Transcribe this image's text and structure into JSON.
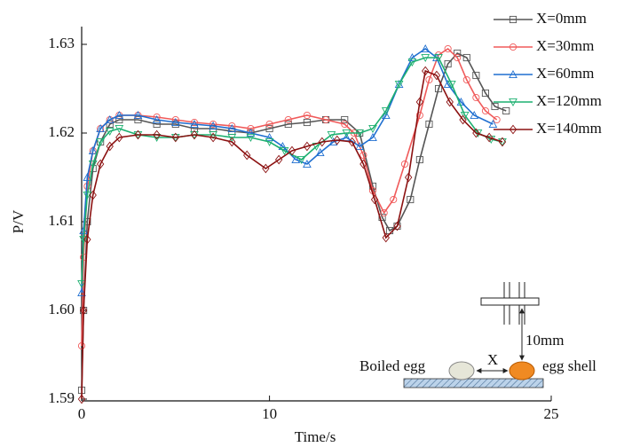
{
  "chart_data": {
    "type": "line",
    "x_label": "Time/s",
    "y_label": "P/V",
    "xlim": [
      0,
      25
    ],
    "xticks": [
      0,
      10,
      25
    ],
    "ylim": [
      1.59,
      1.632
    ],
    "yticks": [
      1.59,
      {
        "value": 1.6,
        "label": "1.60"
      },
      1.61,
      1.62,
      1.63
    ],
    "legend": "top-right",
    "series": [
      {
        "name": "X=0mm",
        "color": "#555555",
        "marker": "square",
        "x": [
          0,
          0.1,
          0.3,
          0.6,
          1,
          1.5,
          2,
          3,
          4,
          5,
          6,
          7,
          8,
          9,
          10,
          11,
          12,
          13,
          14,
          14.8,
          15.5,
          16,
          16.4,
          16.8,
          17.5,
          18,
          18.5,
          19,
          19.5,
          20,
          20.5,
          21,
          21.5,
          22,
          22.6
        ],
        "values": [
          1.591,
          1.6,
          1.61,
          1.616,
          1.619,
          1.621,
          1.6215,
          1.6215,
          1.621,
          1.621,
          1.6205,
          1.6205,
          1.6202,
          1.62,
          1.6205,
          1.621,
          1.6212,
          1.6215,
          1.6215,
          1.62,
          1.614,
          1.6105,
          1.609,
          1.6095,
          1.6125,
          1.617,
          1.621,
          1.625,
          1.6278,
          1.629,
          1.6285,
          1.6265,
          1.6245,
          1.623,
          1.6225
        ]
      },
      {
        "name": "X=30mm",
        "color": "#f05a5a",
        "marker": "circle",
        "x": [
          0,
          0.1,
          0.3,
          0.6,
          1,
          1.5,
          2,
          3,
          4,
          5,
          6,
          7,
          8,
          9,
          10,
          11,
          12,
          13,
          14,
          14.5,
          15,
          15.5,
          16.1,
          16.6,
          17.2,
          18,
          18.5,
          19,
          19.5,
          20,
          20.5,
          21,
          21.5,
          22.1
        ],
        "values": [
          1.596,
          1.606,
          1.614,
          1.618,
          1.6205,
          1.6215,
          1.622,
          1.622,
          1.6218,
          1.6215,
          1.6212,
          1.621,
          1.6208,
          1.6205,
          1.621,
          1.6215,
          1.622,
          1.6215,
          1.621,
          1.62,
          1.6175,
          1.6135,
          1.611,
          1.6125,
          1.6165,
          1.622,
          1.626,
          1.6288,
          1.6295,
          1.6285,
          1.626,
          1.624,
          1.6225,
          1.6215
        ]
      },
      {
        "name": "X=60mm",
        "color": "#1f6fd0",
        "marker": "triangle",
        "x": [
          0,
          0.1,
          0.3,
          0.6,
          1,
          1.5,
          2,
          3,
          4,
          5,
          6,
          7,
          8,
          9,
          10,
          10.7,
          11.4,
          12,
          12.7,
          13.4,
          14.1,
          14.8,
          15.5,
          16.2,
          16.9,
          17.6,
          18.3,
          18.9,
          19.5,
          20.2,
          20.9,
          21.9
        ],
        "values": [
          1.602,
          1.609,
          1.615,
          1.618,
          1.6205,
          1.6215,
          1.622,
          1.622,
          1.6215,
          1.6212,
          1.621,
          1.6208,
          1.6205,
          1.62,
          1.6195,
          1.6185,
          1.617,
          1.6165,
          1.6178,
          1.619,
          1.6195,
          1.6185,
          1.6195,
          1.622,
          1.6255,
          1.6285,
          1.6295,
          1.6285,
          1.6255,
          1.6235,
          1.622,
          1.621
        ]
      },
      {
        "name": "X=120mm",
        "color": "#1db070",
        "marker": "triangle-down",
        "x": [
          0,
          0.1,
          0.3,
          0.6,
          1,
          1.5,
          2,
          3,
          4,
          5,
          6,
          7,
          8,
          9,
          10,
          10.8,
          11.7,
          12.5,
          13.3,
          14.1,
          14.8,
          15.5,
          16.2,
          16.9,
          17.6,
          18.3,
          19,
          19.7,
          20.4,
          21.1,
          21.8,
          22.4
        ],
        "values": [
          1.603,
          1.608,
          1.613,
          1.6165,
          1.619,
          1.6202,
          1.6205,
          1.6198,
          1.6195,
          1.6195,
          1.6198,
          1.6198,
          1.6195,
          1.6195,
          1.619,
          1.618,
          1.617,
          1.6185,
          1.6198,
          1.62,
          1.62,
          1.6205,
          1.6225,
          1.6255,
          1.628,
          1.6285,
          1.6285,
          1.6255,
          1.622,
          1.62,
          1.6193,
          1.619
        ]
      },
      {
        "name": "X=140mm",
        "color": "#8b1010",
        "marker": "diamond",
        "x": [
          0,
          0.1,
          0.3,
          0.6,
          1,
          1.5,
          2,
          3,
          4,
          5,
          6,
          7,
          8,
          8.8,
          9.8,
          10.5,
          11.2,
          12,
          12.8,
          13.6,
          14.4,
          15,
          15.6,
          16.2,
          16.8,
          17.4,
          18,
          18.3,
          18.9,
          19.6,
          20.3,
          21,
          21.7,
          22.4
        ],
        "values": [
          1.59,
          1.6,
          1.608,
          1.613,
          1.6165,
          1.6185,
          1.6195,
          1.6198,
          1.6198,
          1.6195,
          1.6198,
          1.6195,
          1.619,
          1.6175,
          1.616,
          1.617,
          1.618,
          1.6185,
          1.619,
          1.6192,
          1.619,
          1.6165,
          1.6125,
          1.6082,
          1.6095,
          1.615,
          1.6235,
          1.627,
          1.6265,
          1.6235,
          1.6215,
          1.62,
          1.6195,
          1.619
        ]
      }
    ],
    "annotations": {
      "boiled_egg": "Boiled egg",
      "x": "X",
      "egg_shell": "egg shell",
      "height": "10mm"
    }
  }
}
